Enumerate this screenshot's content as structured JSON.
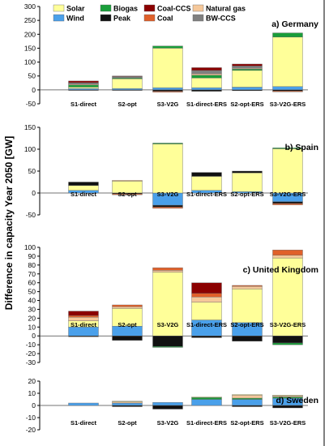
{
  "figure": {
    "ylabel": "Difference in capacity Year 2050 [GW]"
  },
  "legend": [
    {
      "name": "Solar",
      "color": "#ffff99"
    },
    {
      "name": "Biogas",
      "color": "#1a9e3a"
    },
    {
      "name": "Coal-CCS",
      "color": "#8b0000"
    },
    {
      "name": "Natural gas",
      "color": "#f5c89a"
    },
    {
      "name": "Wind",
      "color": "#4aa0ea"
    },
    {
      "name": "Peak",
      "color": "#111111"
    },
    {
      "name": "Coal",
      "color": "#e0602a"
    },
    {
      "name": "BW-CCS",
      "color": "#808080"
    }
  ],
  "chart_data": [
    {
      "type": "bar",
      "stacked": true,
      "title": "a) Germany",
      "categories": [
        "S1-direct",
        "S2-opt",
        "S3-V2G",
        "S1-direct-ERS",
        "S2-opt-ERS",
        "S3-V2G-ERS"
      ],
      "ylim": [
        -50,
        300
      ],
      "yticks": [
        -50,
        0,
        50,
        100,
        150,
        200,
        250,
        300
      ],
      "series": [
        {
          "name": "Wind",
          "values": [
            5,
            5,
            8,
            8,
            10,
            12
          ]
        },
        {
          "name": "Solar",
          "values": [
            5,
            35,
            142,
            35,
            60,
            178
          ]
        },
        {
          "name": "Biogas",
          "values": [
            8,
            3,
            8,
            10,
            5,
            15
          ]
        },
        {
          "name": "Natural gas",
          "values": [
            3,
            0,
            0,
            5,
            3,
            0
          ]
        },
        {
          "name": "BW-CCS",
          "values": [
            5,
            5,
            0,
            12,
            8,
            0
          ]
        },
        {
          "name": "Coal-CCS",
          "values": [
            6,
            2,
            0,
            10,
            7,
            0
          ]
        },
        {
          "name": "Peak",
          "values": [
            -2,
            -2,
            -5,
            -5,
            -3,
            -4
          ]
        },
        {
          "name": "Coal",
          "values": [
            0,
            0,
            -3,
            0,
            0,
            -3
          ]
        }
      ]
    },
    {
      "type": "bar",
      "stacked": true,
      "title": "b) Spain",
      "categories": [
        "S1-direct",
        "S2-opt",
        "S3-V2G",
        "S1-direct-ERS",
        "S2-opt-ERS",
        "S3-V2G-ERS"
      ],
      "ylim": [
        -50,
        150
      ],
      "yticks": [
        -50,
        0,
        50,
        100,
        150
      ],
      "series": [
        {
          "name": "Wind",
          "values": [
            6,
            0,
            -28,
            6,
            3,
            -20
          ]
        },
        {
          "name": "Solar",
          "values": [
            11,
            27,
            112,
            32,
            43,
            101
          ]
        },
        {
          "name": "Biogas",
          "values": [
            0,
            0,
            2,
            0,
            0,
            2
          ]
        },
        {
          "name": "Natural gas",
          "values": [
            0,
            2,
            0,
            0,
            0,
            0
          ]
        },
        {
          "name": "Peak",
          "values": [
            8,
            -2,
            -4,
            9,
            4,
            -4
          ]
        },
        {
          "name": "Coal",
          "values": [
            0,
            -2,
            -3,
            0,
            0,
            -3
          ]
        }
      ]
    },
    {
      "type": "bar",
      "stacked": true,
      "title": "c) United Kingdom",
      "categories": [
        "S1-direct",
        "S2-opt",
        "S3-V2G",
        "S1-direct-ERS",
        "S2-opt-ERS",
        "S3-V2G-ERS"
      ],
      "ylim": [
        -30,
        100
      ],
      "yticks": [
        -30,
        -20,
        -10,
        0,
        10,
        20,
        30,
        40,
        50,
        60,
        70,
        80,
        90,
        100
      ],
      "series": [
        {
          "name": "Wind",
          "values": [
            10,
            11,
            0,
            18,
            15,
            0
          ]
        },
        {
          "name": "Solar",
          "values": [
            7,
            20,
            72,
            20,
            38,
            88
          ]
        },
        {
          "name": "Natural gas",
          "values": [
            4,
            2,
            2,
            6,
            3,
            3
          ]
        },
        {
          "name": "Coal",
          "values": [
            2,
            2,
            3,
            4,
            1,
            6
          ]
        },
        {
          "name": "Coal-CCS",
          "values": [
            5,
            0,
            0,
            12,
            0,
            0
          ]
        },
        {
          "name": "Peak",
          "values": [
            -1,
            -5,
            -12,
            -2,
            -6,
            -8
          ]
        },
        {
          "name": "Biogas",
          "values": [
            0,
            0,
            -1,
            0,
            0,
            -2
          ]
        }
      ]
    },
    {
      "type": "bar",
      "stacked": true,
      "title": "d) Sweden",
      "categories": [
        "S1-direct",
        "S2-opt",
        "S3-V2G",
        "S1-direct-ERS",
        "S2-opt-ERS",
        "S3-V2G-ERS"
      ],
      "ylim": [
        -20,
        20
      ],
      "yticks": [
        -20,
        -10,
        0,
        10,
        20
      ],
      "series": [
        {
          "name": "Wind",
          "values": [
            2,
            2,
            2.5,
            5,
            5,
            6
          ]
        },
        {
          "name": "Biogas",
          "values": [
            0,
            0,
            0,
            1.5,
            1,
            1
          ]
        },
        {
          "name": "Natural gas",
          "values": [
            0,
            1,
            0,
            0,
            2.5,
            1
          ]
        },
        {
          "name": "Peak",
          "values": [
            0,
            -1,
            -3,
            0,
            -1,
            -2
          ]
        },
        {
          "name": "Solar",
          "values": [
            0,
            0.5,
            0,
            0.5,
            0.5,
            0.5
          ]
        }
      ]
    }
  ]
}
